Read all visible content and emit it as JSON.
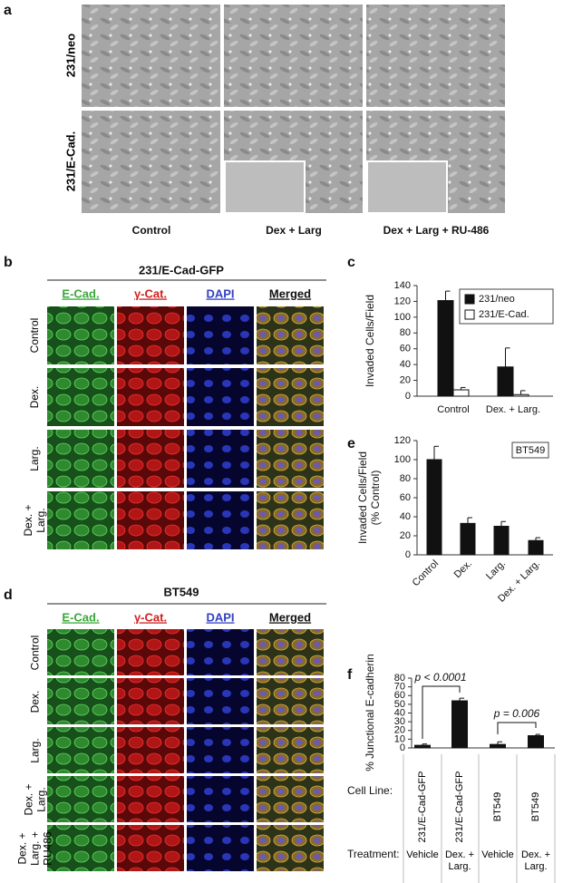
{
  "panel_a": {
    "label": "a",
    "row_labels": [
      "231/neo",
      "231/E-Cad."
    ],
    "column_labels": [
      "Control",
      "Dex + Larg",
      "Dex + Larg + RU-486"
    ]
  },
  "panel_b": {
    "label": "b",
    "title": "231/E-Cad-GFP",
    "column_labels": [
      "E-Cad.",
      "γ-Cat.",
      "DAPI",
      "Merged"
    ],
    "row_labels": [
      "Control",
      "Dex.",
      "Larg.",
      "Dex. + Larg."
    ]
  },
  "panel_d": {
    "label": "d",
    "title": "BT549",
    "column_labels": [
      "E-Cad.",
      "γ-Cat.",
      "DAPI",
      "Merged"
    ],
    "row_labels": [
      "Control",
      "Dex.",
      "Larg.",
      "Dex. + Larg.",
      "Dex. + Larg. + RU486"
    ]
  },
  "chart_data": [
    {
      "type": "bar",
      "label": "c",
      "y_label": "Invaded Cells/Field",
      "categories": [
        "Control",
        "Dex. + Larg."
      ],
      "series": [
        {
          "name": "231/neo",
          "color": "#111111",
          "values": [
            121,
            37
          ],
          "errors": [
            12,
            24
          ]
        },
        {
          "name": "231/E-Cad.",
          "color": "#ffffff",
          "values": [
            8,
            2
          ],
          "errors": [
            3,
            5
          ]
        }
      ],
      "ylim": [
        0,
        140
      ],
      "yticks": [
        0,
        20,
        40,
        60,
        80,
        100,
        120,
        140
      ],
      "legend": "upper right"
    },
    {
      "type": "bar",
      "label": "e",
      "y_label": [
        "Invaded Cells/Field",
        "(% Control)"
      ],
      "categories": [
        "Control",
        "Dex.",
        "Larg.",
        "Dex. + Larg."
      ],
      "series": [
        {
          "color": "#111111",
          "values": [
            100,
            33,
            30,
            15
          ],
          "errors": [
            14,
            6,
            5,
            3
          ]
        }
      ],
      "ylim": [
        0,
        120
      ],
      "yticks": [
        0,
        20,
        40,
        60,
        80,
        100,
        120
      ],
      "annotation": "BT549"
    },
    {
      "type": "bar",
      "label": "f",
      "y_label": "% Junctional E-cadherin",
      "series": [
        {
          "color": "#111111",
          "values": [
            3,
            54,
            4,
            14
          ],
          "errors": [
            1.5,
            3,
            3,
            1.5
          ]
        }
      ],
      "ylim": [
        0,
        80
      ],
      "yticks": [
        0,
        10,
        20,
        30,
        40,
        50,
        60,
        70,
        80
      ],
      "annotations": [
        "p < 0.0001",
        "p = 0.006"
      ],
      "table": [
        {
          "label": "Cell Line:",
          "values": [
            "231/E-Cad-GFP",
            "231/E-Cad-GFP",
            "BT549",
            "BT549"
          ]
        },
        {
          "label": "Treatment:",
          "values": [
            "Vehicle",
            "Dex. + Larg.",
            "Vehicle",
            "Dex. + Larg."
          ]
        }
      ]
    }
  ]
}
